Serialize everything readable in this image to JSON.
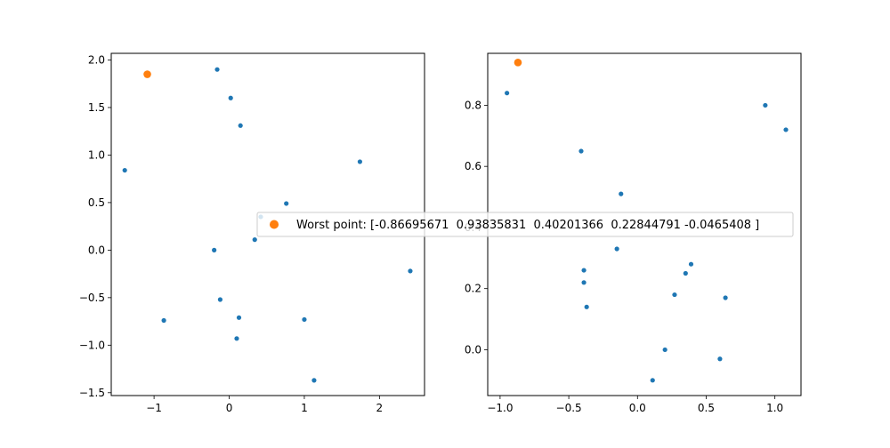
{
  "chart_data": [
    {
      "type": "scatter",
      "title": "",
      "xlabel": "",
      "ylabel": "",
      "xlim": [
        -1.57,
        2.6
      ],
      "ylim": [
        -1.53,
        2.07
      ],
      "xticks": [
        -1,
        0,
        1,
        2
      ],
      "xtick_labels": [
        "−1",
        "0",
        "1",
        "2"
      ],
      "yticks": [
        -1.5,
        -1.0,
        -0.5,
        0.0,
        0.5,
        1.0,
        1.5,
        2.0
      ],
      "ytick_labels": [
        "−1.5",
        "−1.0",
        "−0.5",
        "0.0",
        "0.5",
        "1.0",
        "1.5",
        "2.0"
      ],
      "grid": false,
      "series": [
        {
          "color": "#1f77b4",
          "marker_size": "small",
          "points": [
            {
              "x": -0.16,
              "y": 1.9
            },
            {
              "x": 0.02,
              "y": 1.6
            },
            {
              "x": 0.15,
              "y": 1.31
            },
            {
              "x": -1.39,
              "y": 0.84
            },
            {
              "x": 1.74,
              "y": 0.93
            },
            {
              "x": 0.76,
              "y": 0.49
            },
            {
              "x": 0.42,
              "y": 0.35
            },
            {
              "x": 0.34,
              "y": 0.11
            },
            {
              "x": -0.2,
              "y": 0.0
            },
            {
              "x": 2.41,
              "y": -0.22
            },
            {
              "x": -0.12,
              "y": -0.52
            },
            {
              "x": 0.13,
              "y": -0.71
            },
            {
              "x": 1.0,
              "y": -0.73
            },
            {
              "x": -0.87,
              "y": -0.74
            },
            {
              "x": 0.1,
              "y": -0.93
            },
            {
              "x": 1.13,
              "y": -1.37
            }
          ]
        },
        {
          "name": "Worst point: [-0.86695671  0.93835831  0.40201366  0.22844791 -0.0465408 ]",
          "color": "#ff7f0e",
          "marker_size": "large",
          "points": [
            {
              "x": -1.09,
              "y": 1.85
            }
          ]
        }
      ]
    },
    {
      "type": "scatter",
      "title": "",
      "xlabel": "",
      "ylabel": "",
      "xlim": [
        -1.09,
        1.19
      ],
      "ylim": [
        -0.15,
        0.97
      ],
      "xticks": [
        -1.0,
        -0.5,
        0.0,
        0.5,
        1.0
      ],
      "xtick_labels": [
        "−1.0",
        "−0.5",
        "0.0",
        "0.5",
        "1.0"
      ],
      "yticks": [
        0.0,
        0.2,
        0.4,
        0.6,
        0.8
      ],
      "ytick_labels": [
        "0.0",
        "0.2",
        "0.4",
        "0.6",
        "0.8"
      ],
      "grid": false,
      "series": [
        {
          "color": "#1f77b4",
          "marker_size": "small",
          "points": [
            {
              "x": -0.95,
              "y": 0.84
            },
            {
              "x": 0.93,
              "y": 0.8
            },
            {
              "x": 1.08,
              "y": 0.72
            },
            {
              "x": -0.41,
              "y": 0.65
            },
            {
              "x": -0.12,
              "y": 0.51
            },
            {
              "x": -0.15,
              "y": 0.33
            },
            {
              "x": 0.39,
              "y": 0.28
            },
            {
              "x": 0.35,
              "y": 0.25
            },
            {
              "x": -0.39,
              "y": 0.26
            },
            {
              "x": -0.39,
              "y": 0.22
            },
            {
              "x": 0.27,
              "y": 0.18
            },
            {
              "x": 0.64,
              "y": 0.17
            },
            {
              "x": -0.37,
              "y": 0.14
            },
            {
              "x": 0.2,
              "y": 0.0
            },
            {
              "x": 0.6,
              "y": -0.03
            },
            {
              "x": 0.11,
              "y": -0.1
            }
          ]
        },
        {
          "name": "Worst point: [-0.86695671  0.93835831  0.40201366  0.22844791 -0.0465408 ]",
          "color": "#ff7f0e",
          "marker_size": "large",
          "points": [
            {
              "x": -0.87,
              "y": 0.94
            }
          ]
        }
      ]
    }
  ],
  "legend": {
    "placement": "center",
    "entries": [
      {
        "label": "Worst point: [-0.86695671  0.93835831  0.40201366  0.22844791 -0.0465408 ]",
        "color": "#ff7f0e"
      }
    ]
  }
}
